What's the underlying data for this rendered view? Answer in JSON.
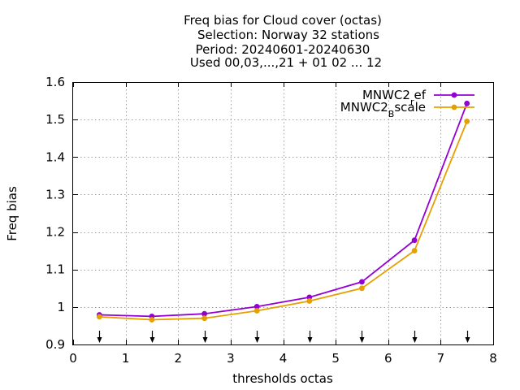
{
  "chart_data": {
    "type": "line",
    "title_lines": [
      "Freq bias  for Cloud cover (octas)",
      "Selection: Norway     32 stations",
      "Period: 20240601-20240630",
      "Used 00,03,...,21 + 01 02 ... 12"
    ],
    "xlabel": "thresholds octas",
    "ylabel": "Freq bias",
    "xlim": [
      0,
      8
    ],
    "ylim": [
      0.9,
      1.6
    ],
    "x_ticks": [
      0,
      1,
      2,
      3,
      4,
      5,
      6,
      7,
      8
    ],
    "y_ticks": [
      0.9,
      1,
      1.1,
      1.2,
      1.3,
      1.4,
      1.5,
      1.6
    ],
    "y_tick_labels": [
      "0.9",
      "1",
      "1.1",
      "1.2",
      "1.3",
      "1.4",
      "1.5",
      "1.6"
    ],
    "grid": true,
    "legend_position": "top-right",
    "x": [
      0.5,
      1.5,
      2.5,
      3.5,
      4.5,
      5.5,
      6.5,
      7.5
    ],
    "series": [
      {
        "name": "MNWC2_ref",
        "legend_main": "MNWC2",
        "legend_sub": "r",
        "legend_rest": "ef",
        "color": "#9400d3",
        "values": [
          0.979,
          0.975,
          0.982,
          1.001,
          1.026,
          1.067,
          1.178,
          1.543
        ]
      },
      {
        "name": "MNWC2_Bscale",
        "legend_main": "MNWC2",
        "legend_sub": "B",
        "legend_rest": "scale",
        "color": "#e69f00",
        "values": [
          0.974,
          0.966,
          0.97,
          0.99,
          1.016,
          1.05,
          1.15,
          1.495
        ]
      }
    ],
    "markers": {
      "type": "down-arrows",
      "x": [
        0.5,
        1.5,
        2.5,
        3.5,
        4.5,
        5.5,
        6.5,
        7.5
      ]
    }
  }
}
